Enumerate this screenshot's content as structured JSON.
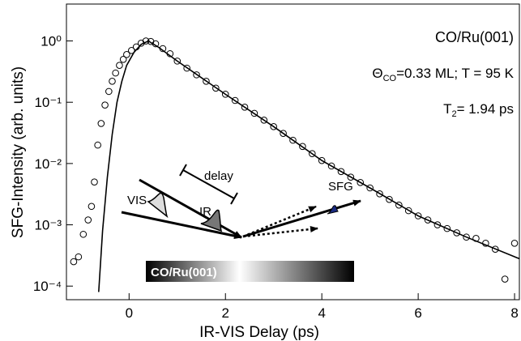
{
  "chart_data": {
    "type": "scatter",
    "x_label": "IR-VIS Delay (ps)",
    "y_label": "SFG-Intensity (arb. units)",
    "xlim": [
      -1.3,
      8.1
    ],
    "ylim": [
      6e-05,
      4
    ],
    "log_y": true,
    "xticks": [
      0,
      2,
      4,
      6,
      8
    ],
    "yticks": [
      {
        "value": 0.0001,
        "label": "10⁻⁴"
      },
      {
        "value": 0.001,
        "label": "10⁻³"
      },
      {
        "value": 0.01,
        "label": "10⁻²"
      },
      {
        "value": 0.1,
        "label": "10⁻¹"
      },
      {
        "value": 1,
        "label": "10⁰"
      }
    ],
    "color": "#000000",
    "x": [
      -1.15,
      -1.05,
      -0.95,
      -0.85,
      -0.78,
      -0.72,
      -0.65,
      -0.58,
      -0.5,
      -0.42,
      -0.35,
      -0.28,
      -0.2,
      -0.12,
      -0.05,
      0.05,
      0.15,
      0.25,
      0.35,
      0.45,
      0.55,
      0.7,
      0.85,
      1.0,
      1.2,
      1.4,
      1.6,
      1.8,
      2.0,
      2.2,
      2.4,
      2.6,
      2.8,
      3.0,
      3.2,
      3.4,
      3.6,
      3.8,
      4.0,
      4.2,
      4.4,
      4.6,
      4.8,
      5.0,
      5.2,
      5.4,
      5.6,
      5.8,
      6.0,
      6.2,
      6.4,
      6.6,
      6.8,
      7.0,
      7.2,
      7.4,
      7.6,
      7.8,
      8.0
    ],
    "values": [
      0.00025,
      0.0003,
      0.0007,
      0.0012,
      0.002,
      0.005,
      0.02,
      0.045,
      0.09,
      0.15,
      0.22,
      0.3,
      0.4,
      0.5,
      0.6,
      0.7,
      0.8,
      0.92,
      1.0,
      0.98,
      0.9,
      0.75,
      0.62,
      0.47,
      0.36,
      0.28,
      0.22,
      0.17,
      0.135,
      0.107,
      0.083,
      0.066,
      0.051,
      0.04,
      0.031,
      0.024,
      0.019,
      0.0145,
      0.0112,
      0.0091,
      0.0074,
      0.006,
      0.0049,
      0.004,
      0.0032,
      0.0026,
      0.0021,
      0.0017,
      0.0014,
      0.0012,
      0.001,
      0.00087,
      0.00074,
      0.00063,
      0.0006,
      0.0005,
      0.0004,
      0.00013,
      0.0005
    ],
    "fit": {
      "type": "line",
      "color": "#000000",
      "x": [
        -0.63,
        -0.55,
        -0.45,
        -0.35,
        -0.25,
        -0.15,
        -0.05,
        0.1,
        0.25,
        0.4,
        0.6,
        1,
        2,
        3,
        4,
        5,
        6,
        7,
        8.1
      ],
      "values": [
        8e-05,
        0.0008,
        0.006,
        0.03,
        0.1,
        0.22,
        0.4,
        0.65,
        0.88,
        1.0,
        0.8,
        0.47,
        0.135,
        0.04,
        0.0112,
        0.004,
        0.0014,
        0.00063,
        0.00028
      ]
    },
    "annotations": {
      "sample": "CO/Ru(001)",
      "coverage": [
        "Θ",
        "CO",
        "=0.33 ML; T = 95 K"
      ],
      "t2": [
        "T",
        "2",
        "= 1.94 ps"
      ]
    },
    "diagram": {
      "vis": "VIS",
      "ir": "IR",
      "delay": "delay",
      "sfg": "SFG",
      "surface": "CO/Ru(001)"
    }
  }
}
